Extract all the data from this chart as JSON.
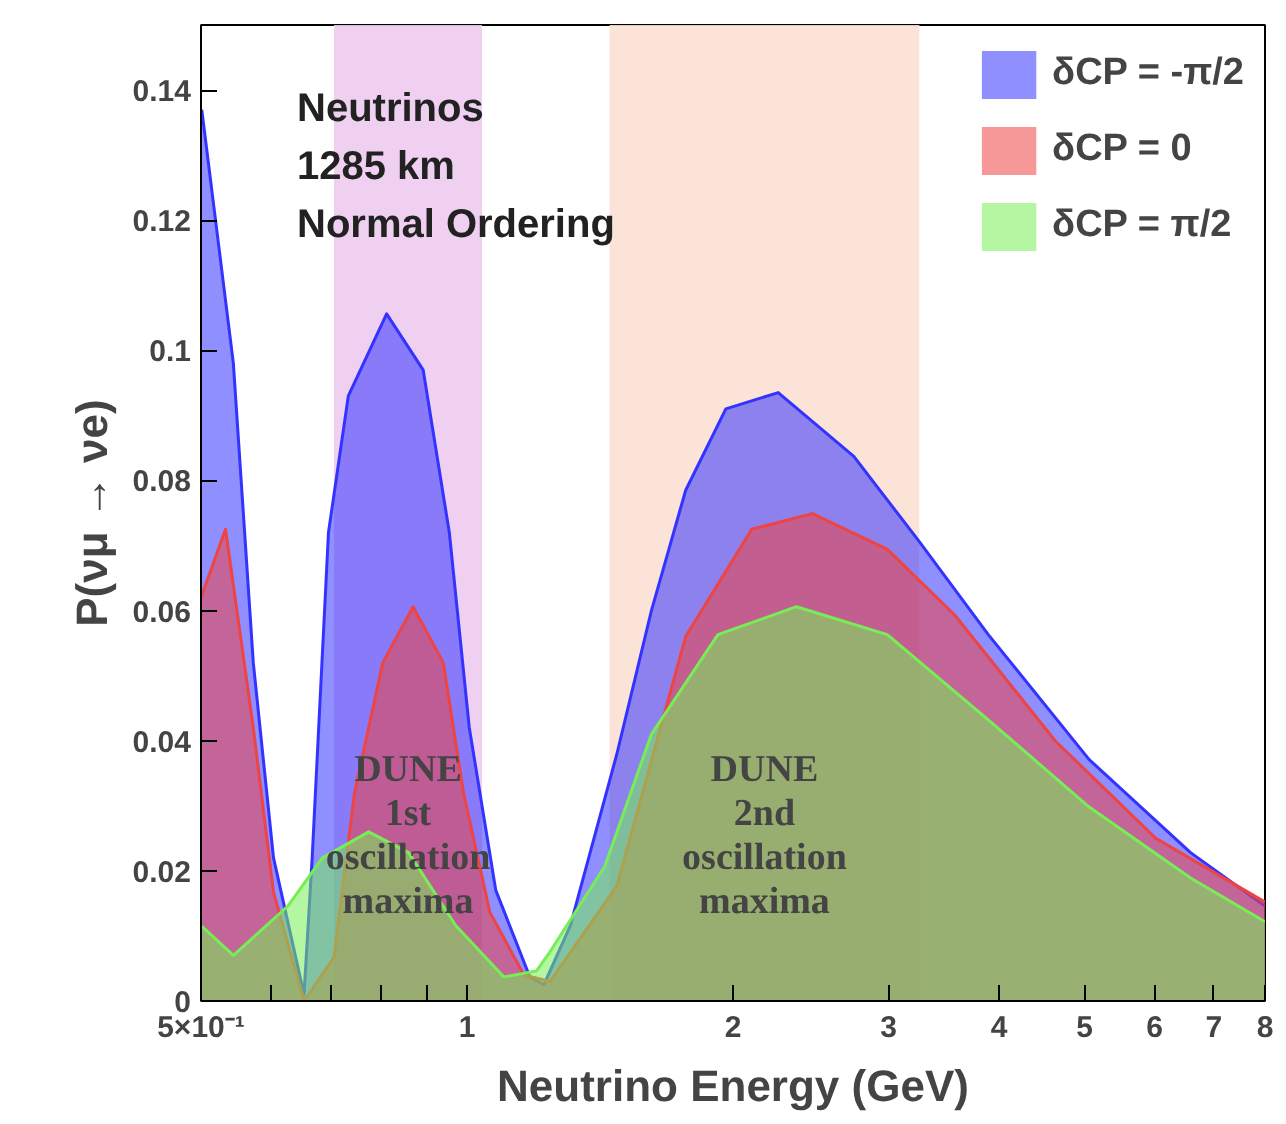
{
  "chart_data": {
    "type": "area",
    "xlabel": "Neutrino Energy (GeV)",
    "ylabel": "P(νμ → νe)",
    "log": "x",
    "grid": false,
    "legend": "top right",
    "xlim": [
      0.5,
      8
    ],
    "ylim": [
      0,
      0.15
    ],
    "xticks": [
      {
        "value": 0.5,
        "label": "5×10⁻¹"
      },
      {
        "value": 0.6,
        "label": null
      },
      {
        "value": 0.7,
        "label": null
      },
      {
        "value": 0.8,
        "label": null
      },
      {
        "value": 0.9,
        "label": null
      },
      1,
      2,
      3,
      4,
      5,
      6,
      7,
      8
    ],
    "yticks": [
      0,
      0.02,
      0.04,
      0.06,
      0.08,
      0.1,
      0.12,
      0.14
    ],
    "annotations": [
      "Neutrinos",
      "1285 km",
      "Normal Ordering"
    ],
    "bands": [
      {
        "axis": "x",
        "from": 0.707,
        "to": 1.04,
        "label": "DUNE\n1st\noscillation\nmaxima",
        "color": "#eecbee"
      },
      {
        "axis": "x",
        "from": 1.45,
        "to": 3.25,
        "label": "DUNE\n2nd\noscillation\nmaxima",
        "color": "#fbe0d4"
      }
    ],
    "series": [
      {
        "name": "δCP = -π/2",
        "color": "#3333ff",
        "x": [
          0.501,
          0.544,
          0.573,
          0.604,
          0.654,
          0.668,
          0.697,
          0.734,
          0.811,
          0.892,
          0.955,
          1.006,
          1.078,
          1.178,
          1.222,
          1.309,
          1.478,
          1.617,
          1.768,
          1.963,
          2.25,
          2.74,
          3.25,
          3.89,
          5.06,
          6.59,
          8
        ],
        "values": [
          0.137,
          0.098,
          0.052,
          0.022,
          0.001,
          0.022,
          0.072,
          0.093,
          0.1056,
          0.097,
          0.072,
          0.042,
          0.017,
          0.0037,
          0.0025,
          0.0116,
          0.038,
          0.06,
          0.0785,
          0.091,
          0.0935,
          0.0837,
          0.0706,
          0.0563,
          0.0371,
          0.0228,
          0.0146
        ]
      },
      {
        "name": "δCP = 0",
        "color": "#ee4444",
        "x": [
          0.5,
          0.533,
          0.573,
          0.604,
          0.654,
          0.707,
          0.746,
          0.803,
          0.869,
          0.94,
          0.991,
          1.061,
          1.16,
          1.242,
          1.478,
          1.768,
          2.1,
          2.46,
          2.99,
          3.56,
          4.63,
          6.02,
          8
        ],
        "values": [
          0.062,
          0.0725,
          0.042,
          0.0167,
          0.0,
          0.0067,
          0.032,
          0.052,
          0.0606,
          0.052,
          0.032,
          0.0137,
          0.004,
          0.003,
          0.0177,
          0.056,
          0.0725,
          0.0749,
          0.0694,
          0.0594,
          0.04,
          0.025,
          0.0152
        ]
      },
      {
        "name": "δCP = π/2",
        "color": "#77ee55",
        "x": [
          0.5,
          0.544,
          0.627,
          0.686,
          0.774,
          0.859,
          0.971,
          1.101,
          1.198,
          1.242,
          1.432,
          1.617,
          1.923,
          2.36,
          2.99,
          3.89,
          5.06,
          6.59,
          8
        ],
        "values": [
          0.0116,
          0.007,
          0.0146,
          0.022,
          0.026,
          0.0228,
          0.0116,
          0.0037,
          0.0046,
          0.0076,
          0.0207,
          0.041,
          0.0563,
          0.0606,
          0.0563,
          0.0432,
          0.0298,
          0.0189,
          0.0122
        ]
      }
    ]
  }
}
